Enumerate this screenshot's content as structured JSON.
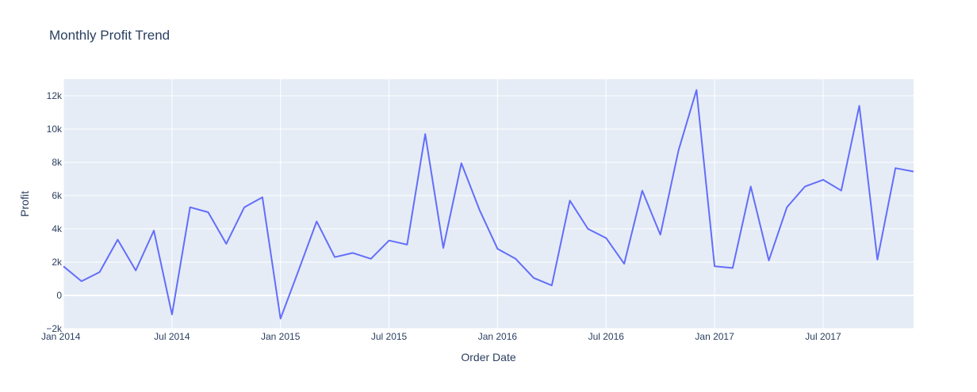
{
  "chart_data": {
    "type": "line",
    "title": "Monthly Profit Trend",
    "xlabel": "Order Date",
    "ylabel": "Profit",
    "x": [
      "2014-01",
      "2014-02",
      "2014-03",
      "2014-04",
      "2014-05",
      "2014-06",
      "2014-07",
      "2014-08",
      "2014-09",
      "2014-10",
      "2014-11",
      "2014-12",
      "2015-01",
      "2015-02",
      "2015-03",
      "2015-04",
      "2015-05",
      "2015-06",
      "2015-07",
      "2015-08",
      "2015-09",
      "2015-10",
      "2015-11",
      "2015-12",
      "2016-01",
      "2016-02",
      "2016-03",
      "2016-04",
      "2016-05",
      "2016-06",
      "2016-07",
      "2016-08",
      "2016-09",
      "2016-10",
      "2016-11",
      "2016-12",
      "2017-01",
      "2017-02",
      "2017-03",
      "2017-04",
      "2017-05",
      "2017-06",
      "2017-07",
      "2017-08",
      "2017-09",
      "2017-10",
      "2017-11",
      "2017-12"
    ],
    "series": [
      {
        "values": [
          1750,
          850,
          1400,
          3350,
          1500,
          3900,
          -1150,
          5300,
          5000,
          3100,
          5300,
          5900,
          -1400,
          1500,
          4450,
          2300,
          2550,
          2200,
          3300,
          3050,
          9700,
          2850,
          7950,
          5150,
          2800,
          2200,
          1050,
          600,
          5700,
          4000,
          3450,
          1900,
          6300,
          3650,
          8700,
          12350,
          1750,
          1650,
          6550,
          2100,
          5300,
          6550,
          6950,
          6300,
          11400,
          2150,
          7650,
          7450
        ],
        "color": "#636efa"
      }
    ],
    "x_ticks": [
      {
        "label": "Jan 2014",
        "x": "2014-01"
      },
      {
        "label": "Jul 2014",
        "x": "2014-07"
      },
      {
        "label": "Jan 2015",
        "x": "2015-01"
      },
      {
        "label": "Jul 2015",
        "x": "2015-07"
      },
      {
        "label": "Jan 2016",
        "x": "2016-01"
      },
      {
        "label": "Jul 2016",
        "x": "2016-07"
      },
      {
        "label": "Jan 2017",
        "x": "2017-01"
      },
      {
        "label": "Jul 2017",
        "x": "2017-07"
      }
    ],
    "y_ticks": [
      {
        "label": "−2k",
        "value": -2000
      },
      {
        "label": "0",
        "value": 0
      },
      {
        "label": "2k",
        "value": 2000
      },
      {
        "label": "4k",
        "value": 4000
      },
      {
        "label": "6k",
        "value": 6000
      },
      {
        "label": "8k",
        "value": 8000
      },
      {
        "label": "10k",
        "value": 10000
      },
      {
        "label": "12k",
        "value": 12000
      }
    ],
    "xlim": [
      "2014-01",
      "2017-12"
    ],
    "ylim": [
      -2000,
      13000
    ],
    "grid": true,
    "background_color": "#e5ecf6",
    "gridline_color": "#ffffff"
  }
}
